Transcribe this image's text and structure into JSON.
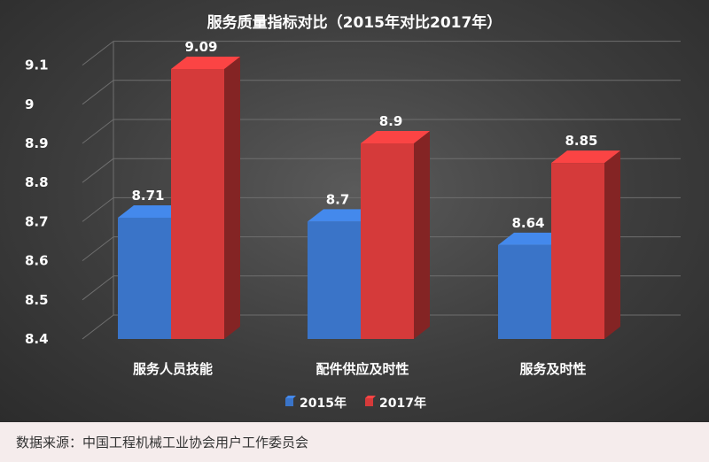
{
  "chart_data": {
    "type": "bar",
    "title": "服务质量指标对比（2015年对比2017年）",
    "categories": [
      "服务人员技能",
      "配件供应及时性",
      "服务及时性"
    ],
    "series": [
      {
        "name": "2015年",
        "values": [
          8.71,
          8.7,
          8.64
        ],
        "color": "#3a74c8"
      },
      {
        "name": "2017年",
        "values": [
          9.09,
          8.9,
          8.85
        ],
        "color": "#d53a3a"
      }
    ],
    "data_labels": [
      [
        "8.71",
        "8.7",
        "8.64"
      ],
      [
        "9.09",
        "8.9",
        "8.85"
      ]
    ],
    "yticks": [
      "8.4",
      "8.5",
      "8.6",
      "8.7",
      "8.8",
      "8.9",
      "9",
      "9.1"
    ],
    "ylim": [
      8.4,
      9.1
    ],
    "grid": true,
    "legend": "bottom"
  },
  "source": "数据来源：中国工程机械工业协会用户工作委员会"
}
